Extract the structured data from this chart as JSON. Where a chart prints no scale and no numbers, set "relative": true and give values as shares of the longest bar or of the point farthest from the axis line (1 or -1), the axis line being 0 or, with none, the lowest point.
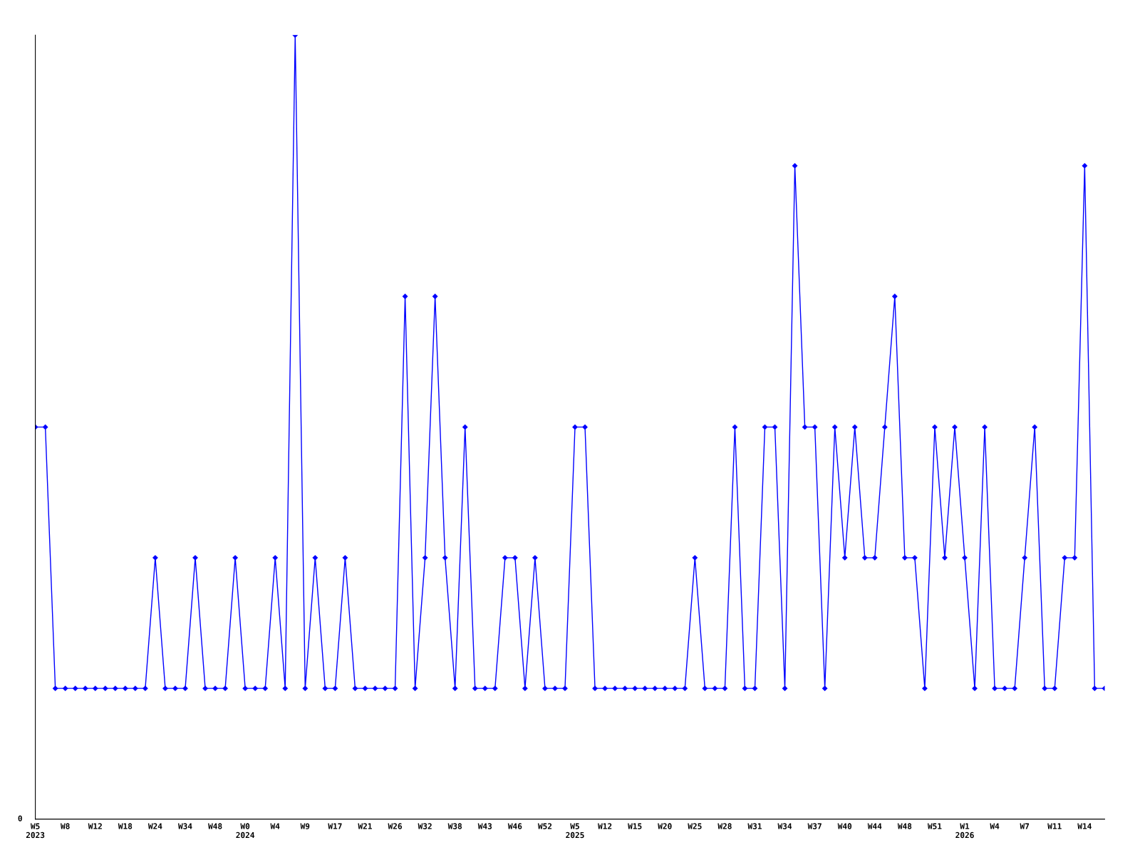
{
  "chart_data": {
    "type": "line",
    "relative": true,
    "marker": "diamond",
    "line_style": "solid",
    "grid": false,
    "legend": false,
    "annotations": [
      "0"
    ],
    "categories": [
      "W5\n2023",
      null,
      null,
      "W8",
      null,
      null,
      "W12",
      null,
      null,
      "W18",
      null,
      null,
      "W24",
      null,
      null,
      "W34",
      null,
      null,
      "W48",
      null,
      null,
      "W0\n2024",
      null,
      null,
      "W4",
      null,
      null,
      "W9",
      null,
      null,
      "W17",
      null,
      null,
      "W21",
      null,
      null,
      "W26",
      null,
      null,
      "W32",
      null,
      null,
      "W38",
      null,
      null,
      "W43",
      null,
      null,
      "W46",
      null,
      null,
      "W52",
      null,
      null,
      "W5\n2025",
      null,
      null,
      "W12",
      null,
      null,
      "W15",
      null,
      null,
      "W20",
      null,
      null,
      "W25",
      null,
      null,
      "W28",
      null,
      null,
      "W31",
      null,
      null,
      "W34",
      null,
      null,
      "W37",
      null,
      null,
      "W40",
      null,
      null,
      "W44",
      null,
      null,
      "W48",
      null,
      null,
      "W51",
      null,
      null,
      "W1\n2026",
      null,
      null,
      "W4",
      null,
      null,
      "W7",
      null,
      null,
      "W11",
      null,
      null,
      "W14",
      null,
      null
    ],
    "series": [
      {
        "color": "#0000ff",
        "values": [
          0.5,
          0.5,
          0.1667,
          0.1667,
          0.1667,
          0.1667,
          0.1667,
          0.1667,
          0.1667,
          0.1667,
          0.1667,
          0.1667,
          0.3333,
          0.1667,
          0.1667,
          0.1667,
          0.3333,
          0.1667,
          0.1667,
          0.1667,
          0.3333,
          0.1667,
          0.1667,
          0.1667,
          0.3333,
          0.1667,
          1,
          0.1667,
          0.3333,
          0.1667,
          0.1667,
          0.3333,
          0.1667,
          0.1667,
          0.1667,
          0.1667,
          0.1667,
          0.6667,
          0.1667,
          0.3333,
          0.6667,
          0.3333,
          0.1667,
          0.5,
          0.1667,
          0.1667,
          0.1667,
          0.3333,
          0.3333,
          0.1667,
          0.3333,
          0.1667,
          0.1667,
          0.1667,
          0.5,
          0.5,
          0.1667,
          0.1667,
          0.1667,
          0.1667,
          0.1667,
          0.1667,
          0.1667,
          0.1667,
          0.1667,
          0.1667,
          0.3333,
          0.1667,
          0.1667,
          0.1667,
          0.5,
          0.1667,
          0.1667,
          0.5,
          0.5,
          0.1667,
          0.8333,
          0.5,
          0.5,
          0.1667,
          0.5,
          0.3333,
          0.5,
          0.3333,
          0.3333,
          0.5,
          0.6667,
          0.3333,
          0.3333,
          0.1667,
          0.5,
          0.3333,
          0.5,
          0.3333,
          0.1667,
          0.5,
          0.1667,
          0.1667,
          0.1667,
          0.3333,
          0.5,
          0.1667,
          0.1667,
          0.3333,
          0.3333,
          0.8333,
          0.1667,
          0.1667
        ]
      }
    ]
  }
}
